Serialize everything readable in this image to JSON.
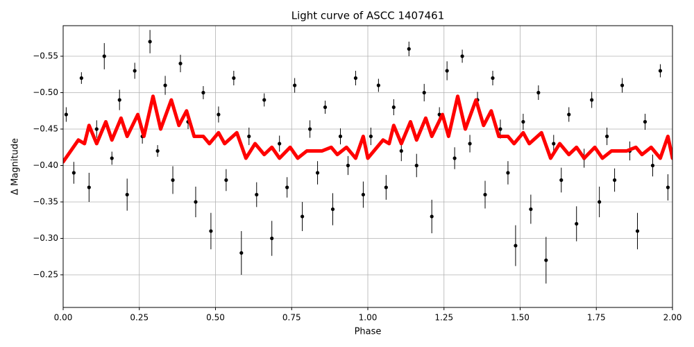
{
  "chart_data": {
    "type": "scatter",
    "title": "Light curve of ASCC 1407461",
    "x_label": "Phase",
    "y_label": "Δ Magnitude",
    "xlim": [
      0,
      2
    ],
    "ylim": [
      -0.2052,
      -0.5919
    ],
    "xticks": [
      {
        "value": 0,
        "label": "0.00"
      },
      {
        "value": 0.25,
        "label": "0.25"
      },
      {
        "value": 0.5,
        "label": "0.50"
      },
      {
        "value": 0.75,
        "label": "0.75"
      },
      {
        "value": 1,
        "label": "1.00"
      },
      {
        "value": 1.25,
        "label": "1.25"
      },
      {
        "value": 1.5,
        "label": "1.50"
      },
      {
        "value": 1.75,
        "label": "1.75"
      },
      {
        "value": 2,
        "label": "2.00"
      }
    ],
    "yticks": [
      {
        "value": -0.25,
        "label": "−0.25"
      },
      {
        "value": -0.3,
        "label": "−0.30"
      },
      {
        "value": -0.35,
        "label": "−0.35"
      },
      {
        "value": -0.4,
        "label": "−0.40"
      },
      {
        "value": -0.45,
        "label": "−0.45"
      },
      {
        "value": -0.5,
        "label": "−0.50"
      },
      {
        "value": -0.55,
        "label": "−0.55"
      }
    ],
    "grid": true,
    "points": {
      "color": "#000000",
      "x": [
        0.01,
        0.035,
        0.06,
        0.085,
        0.11,
        0.135,
        0.16,
        0.185,
        0.21,
        0.235,
        0.26,
        0.285,
        0.31,
        0.335,
        0.36,
        0.385,
        0.41,
        0.435,
        0.46,
        0.485,
        0.51,
        0.535,
        0.56,
        0.585,
        0.61,
        0.635,
        0.66,
        0.685,
        0.71,
        0.735,
        0.76,
        0.785,
        0.81,
        0.835,
        0.86,
        0.885,
        0.91,
        0.935,
        0.96,
        0.985,
        1.01,
        1.035,
        1.06,
        1.085,
        1.11,
        1.135,
        1.16,
        1.185,
        1.21,
        1.235,
        1.26,
        1.285,
        1.31,
        1.335,
        1.36,
        1.385,
        1.41,
        1.435,
        1.46,
        1.485,
        1.51,
        1.535,
        1.56,
        1.585,
        1.61,
        1.635,
        1.66,
        1.685,
        1.71,
        1.735,
        1.76,
        1.785,
        1.81,
        1.835,
        1.86,
        1.885,
        1.91,
        1.935,
        1.96,
        1.985
      ],
      "values": [
        -0.47,
        -0.39,
        -0.52,
        -0.37,
        -0.45,
        -0.55,
        -0.41,
        -0.49,
        -0.36,
        -0.53,
        -0.44,
        -0.57,
        -0.42,
        -0.51,
        -0.38,
        -0.54,
        -0.46,
        -0.35,
        -0.5,
        -0.31,
        -0.47,
        -0.38,
        -0.52,
        -0.28,
        -0.44,
        -0.36,
        -0.49,
        -0.3,
        -0.43,
        -0.37,
        -0.51,
        -0.33,
        -0.45,
        -0.39,
        -0.48,
        -0.34,
        -0.44,
        -0.4,
        -0.52,
        -0.36,
        -0.44,
        -0.51,
        -0.37,
        -0.48,
        -0.42,
        -0.56,
        -0.4,
        -0.5,
        -0.33,
        -0.47,
        -0.53,
        -0.41,
        -0.55,
        -0.43,
        -0.49,
        -0.36,
        -0.52,
        -0.45,
        -0.39,
        -0.29,
        -0.46,
        -0.34,
        -0.5,
        -0.27,
        -0.43,
        -0.38,
        -0.47,
        -0.32,
        -0.41,
        -0.49,
        -0.35,
        -0.44,
        -0.38,
        -0.51,
        -0.42,
        -0.31,
        -0.46,
        -0.4,
        -0.53,
        -0.37
      ],
      "errors": [
        0.01,
        0.015,
        0.008,
        0.02,
        0.012,
        0.018,
        0.009,
        0.014,
        0.022,
        0.011,
        0.01,
        0.016,
        0.008,
        0.013,
        0.019,
        0.012,
        0.01,
        0.021,
        0.009,
        0.025,
        0.011,
        0.015,
        0.01,
        0.03,
        0.012,
        0.017,
        0.009,
        0.024,
        0.011,
        0.014,
        0.01,
        0.02,
        0.012,
        0.016,
        0.009,
        0.022,
        0.011,
        0.013,
        0.01,
        0.018,
        0.012,
        0.009,
        0.017,
        0.011,
        0.014,
        0.01,
        0.016,
        0.012,
        0.023,
        0.01,
        0.013,
        0.015,
        0.009,
        0.012,
        0.011,
        0.019,
        0.01,
        0.013,
        0.016,
        0.028,
        0.011,
        0.02,
        0.01,
        0.032,
        0.012,
        0.017,
        0.01,
        0.024,
        0.013,
        0.011,
        0.021,
        0.012,
        0.016,
        0.01,
        0.013,
        0.025,
        0.011,
        0.015,
        0.009,
        0.018
      ]
    },
    "model": {
      "color": "#ff0000",
      "x": [
        0,
        0.05,
        0.07,
        0.085,
        0.11,
        0.14,
        0.16,
        0.19,
        0.21,
        0.245,
        0.265,
        0.295,
        0.32,
        0.355,
        0.38,
        0.405,
        0.43,
        0.46,
        0.48,
        0.51,
        0.53,
        0.57,
        0.6,
        0.63,
        0.66,
        0.685,
        0.71,
        0.745,
        0.77,
        0.8,
        0.85,
        0.88,
        0.9,
        0.93,
        0.96,
        0.985,
        1,
        1.05,
        1.07,
        1.085,
        1.11,
        1.14,
        1.16,
        1.19,
        1.21,
        1.245,
        1.265,
        1.295,
        1.32,
        1.355,
        1.38,
        1.405,
        1.43,
        1.46,
        1.48,
        1.51,
        1.53,
        1.57,
        1.6,
        1.63,
        1.66,
        1.685,
        1.71,
        1.745,
        1.77,
        1.8,
        1.85,
        1.88,
        1.9,
        1.93,
        1.96,
        1.985,
        2
      ],
      "values": [
        -0.405,
        -0.435,
        -0.43,
        -0.455,
        -0.43,
        -0.46,
        -0.435,
        -0.465,
        -0.44,
        -0.47,
        -0.44,
        -0.495,
        -0.45,
        -0.49,
        -0.455,
        -0.475,
        -0.44,
        -0.44,
        -0.43,
        -0.445,
        -0.43,
        -0.445,
        -0.41,
        -0.43,
        -0.415,
        -0.425,
        -0.41,
        -0.425,
        -0.41,
        -0.42,
        -0.42,
        -0.425,
        -0.415,
        -0.425,
        -0.41,
        -0.44,
        -0.41,
        -0.435,
        -0.43,
        -0.455,
        -0.43,
        -0.46,
        -0.435,
        -0.465,
        -0.44,
        -0.47,
        -0.44,
        -0.495,
        -0.45,
        -0.49,
        -0.455,
        -0.475,
        -0.44,
        -0.44,
        -0.43,
        -0.445,
        -0.43,
        -0.445,
        -0.41,
        -0.43,
        -0.415,
        -0.425,
        -0.41,
        -0.425,
        -0.41,
        -0.42,
        -0.42,
        -0.425,
        -0.415,
        -0.425,
        -0.41,
        -0.44,
        -0.41
      ]
    }
  }
}
